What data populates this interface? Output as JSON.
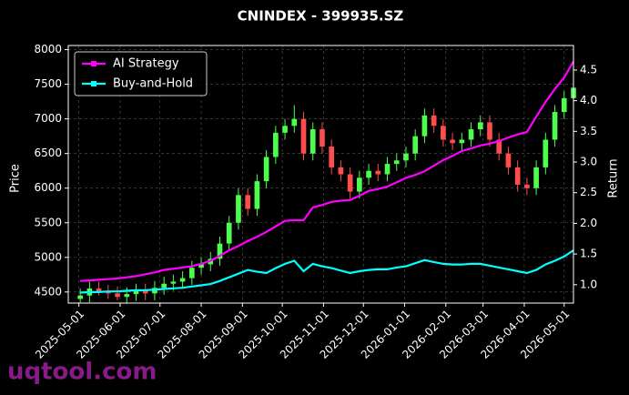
{
  "chart_data": {
    "type": "candlestick",
    "title": "CNINDEX - 399935.SZ",
    "y_label": "Price",
    "y2_label": "Return",
    "watermark": "uqtool.com",
    "x": [
      "2025-05-02",
      "2025-05-09",
      "2025-05-16",
      "2025-05-23",
      "2025-05-30",
      "2025-06-06",
      "2025-06-13",
      "2025-06-20",
      "2025-06-27",
      "2025-07-04",
      "2025-07-11",
      "2025-07-18",
      "2025-07-25",
      "2025-08-01",
      "2025-08-08",
      "2025-08-15",
      "2025-08-22",
      "2025-08-29",
      "2025-09-05",
      "2025-09-12",
      "2025-09-19",
      "2025-09-26",
      "2025-10-03",
      "2025-10-10",
      "2025-10-17",
      "2025-10-24",
      "2025-10-31",
      "2025-11-07",
      "2025-11-14",
      "2025-11-21",
      "2025-11-28",
      "2025-12-05",
      "2025-12-12",
      "2025-12-19",
      "2025-12-26",
      "2026-01-02",
      "2026-01-09",
      "2026-01-16",
      "2026-01-23",
      "2026-01-30",
      "2026-02-06",
      "2026-02-13",
      "2026-02-20",
      "2026-02-27",
      "2026-03-06",
      "2026-03-13",
      "2026-03-20",
      "2026-03-27",
      "2026-04-03",
      "2026-04-10",
      "2026-04-17",
      "2026-04-24",
      "2026-05-01",
      "2026-05-08"
    ],
    "open": [
      4400,
      4450,
      4550,
      4500,
      4480,
      4430,
      4470,
      4520,
      4480,
      4560,
      4620,
      4650,
      4700,
      4850,
      4900,
      4980,
      5200,
      5500,
      5900,
      5700,
      6100,
      6450,
      6800,
      6900,
      7000,
      6500,
      6850,
      6600,
      6300,
      6200,
      5950,
      6150,
      6250,
      6200,
      6350,
      6400,
      6500,
      6750,
      7050,
      6900,
      6700,
      6650,
      6700,
      6850,
      6950,
      6700,
      6500,
      6300,
      6050,
      6000,
      6300,
      6700,
      7100,
      7300
    ],
    "high": [
      4550,
      4650,
      4650,
      4600,
      4580,
      4570,
      4620,
      4620,
      4660,
      4720,
      4750,
      4800,
      4950,
      5000,
      5080,
      5300,
      5600,
      6000,
      6000,
      6200,
      6550,
      6900,
      7000,
      7200,
      7100,
      6950,
      6950,
      6700,
      6400,
      6300,
      6250,
      6350,
      6350,
      6450,
      6500,
      6600,
      6850,
      7150,
      7150,
      7000,
      6800,
      6800,
      6950,
      7050,
      7050,
      6800,
      6600,
      6400,
      6150,
      6400,
      6800,
      7200,
      7400,
      7550
    ],
    "low": [
      4350,
      4350,
      4450,
      4400,
      4380,
      4330,
      4370,
      4380,
      4380,
      4460,
      4520,
      4550,
      4600,
      4750,
      4800,
      4880,
      5100,
      5400,
      5600,
      5600,
      6000,
      6350,
      6700,
      6800,
      6400,
      6400,
      6500,
      6200,
      6100,
      5850,
      5850,
      6050,
      6100,
      6100,
      6250,
      6300,
      6400,
      6650,
      6800,
      6600,
      6550,
      6550,
      6600,
      6750,
      6600,
      6400,
      6200,
      5950,
      5900,
      5900,
      6200,
      6600,
      7000,
      7200
    ],
    "close": [
      4450,
      4550,
      4500,
      4480,
      4430,
      4470,
      4520,
      4480,
      4560,
      4620,
      4650,
      4700,
      4850,
      4900,
      4980,
      5200,
      5500,
      5900,
      5700,
      6100,
      6450,
      6800,
      6900,
      7000,
      6500,
      6850,
      6600,
      6300,
      6200,
      5950,
      6150,
      6250,
      6200,
      6350,
      6400,
      6500,
      6750,
      7050,
      6900,
      6700,
      6650,
      6700,
      6850,
      6950,
      6700,
      6500,
      6300,
      6050,
      6000,
      6300,
      6700,
      7100,
      7300,
      7450
    ],
    "up_color": "#4dff4d",
    "down_color": "#ff4d4d",
    "series": [
      {
        "name": "AI Strategy",
        "color": "#ff00ff",
        "axis": "y2",
        "values": [
          1.06,
          1.07,
          1.08,
          1.09,
          1.1,
          1.12,
          1.14,
          1.17,
          1.2,
          1.24,
          1.26,
          1.28,
          1.3,
          1.34,
          1.39,
          1.47,
          1.56,
          1.63,
          1.71,
          1.78,
          1.86,
          1.95,
          2.04,
          2.05,
          2.05,
          2.26,
          2.3,
          2.35,
          2.37,
          2.38,
          2.45,
          2.53,
          2.56,
          2.6,
          2.67,
          2.74,
          2.79,
          2.85,
          2.94,
          3.03,
          3.1,
          3.18,
          3.22,
          3.27,
          3.3,
          3.34,
          3.4,
          3.45,
          3.49,
          3.74,
          3.98,
          4.19,
          4.38,
          4.64
        ]
      },
      {
        "name": "Buy-and-Hold",
        "color": "#00ffff",
        "axis": "y2",
        "values": [
          0.87,
          0.88,
          0.88,
          0.89,
          0.89,
          0.9,
          0.91,
          0.91,
          0.92,
          0.93,
          0.94,
          0.95,
          0.97,
          0.99,
          1.01,
          1.06,
          1.12,
          1.18,
          1.24,
          1.21,
          1.19,
          1.27,
          1.34,
          1.39,
          1.22,
          1.34,
          1.3,
          1.27,
          1.23,
          1.19,
          1.22,
          1.24,
          1.25,
          1.25,
          1.28,
          1.3,
          1.35,
          1.4,
          1.37,
          1.34,
          1.33,
          1.33,
          1.34,
          1.34,
          1.31,
          1.28,
          1.25,
          1.22,
          1.19,
          1.24,
          1.33,
          1.39,
          1.46,
          1.56
        ]
      }
    ],
    "xlim": [
      "2025-04-23",
      "2026-05-08"
    ],
    "xticks": [
      "2025-05-01",
      "2025-06-01",
      "2025-07-01",
      "2025-08-01",
      "2025-09-01",
      "2025-10-01",
      "2025-11-01",
      "2025-12-01",
      "2026-01-01",
      "2026-02-01",
      "2026-03-01",
      "2026-04-01",
      "2026-05-01"
    ],
    "ylim": [
      4340,
      8060
    ],
    "yticks": [
      4500,
      5000,
      5500,
      6000,
      6500,
      7000,
      7500,
      8000
    ],
    "y2lim": [
      0.7,
      4.9
    ],
    "y2ticks": [
      {
        "value": 1,
        "label": "1.0"
      },
      {
        "value": 1.5,
        "label": "1.5"
      },
      {
        "value": 2,
        "label": "2.0"
      },
      {
        "value": 2.5,
        "label": "2.5"
      },
      {
        "value": 3,
        "label": "3.0"
      },
      {
        "value": 3.5,
        "label": "3.5"
      },
      {
        "value": 4,
        "label": "4.0"
      },
      {
        "value": 4.5,
        "label": "4.5"
      }
    ],
    "grid": true,
    "legend": "upper-left"
  }
}
